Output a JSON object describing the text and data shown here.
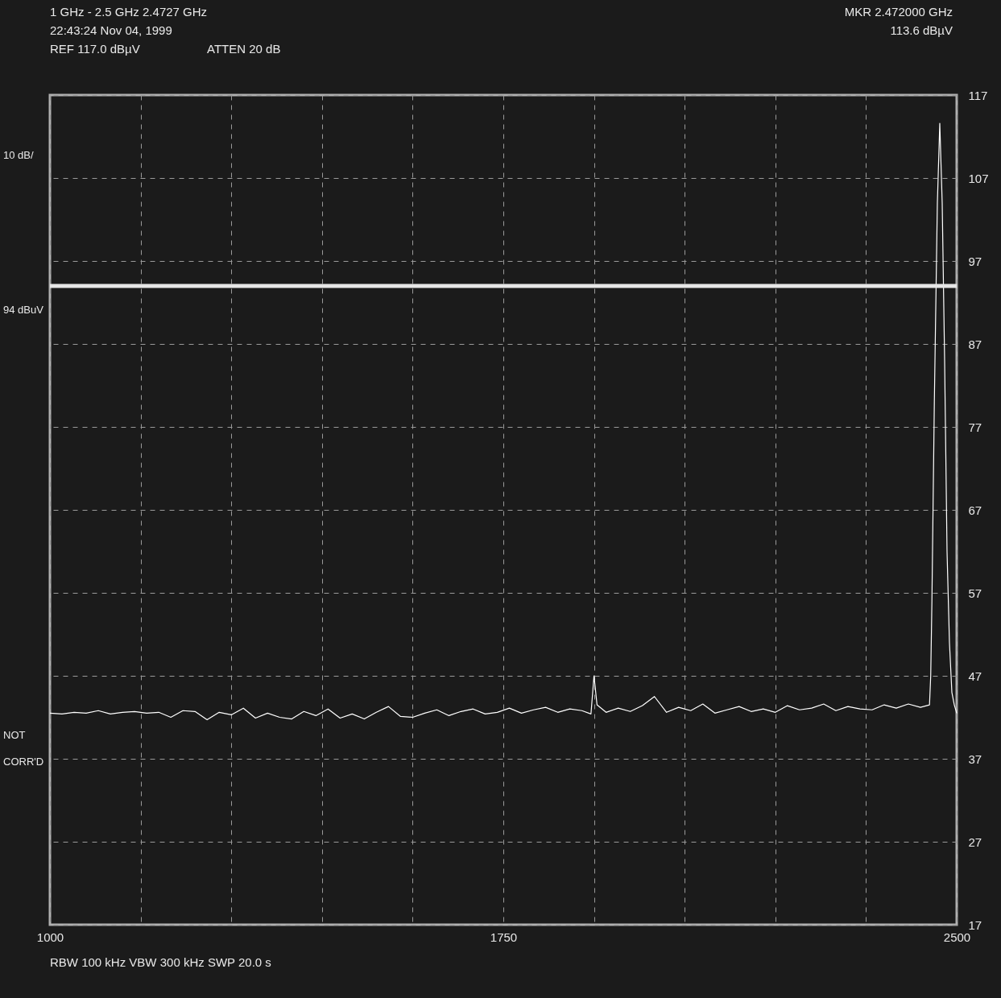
{
  "chart_data": {
    "type": "line",
    "xlim": [
      1000,
      2500
    ],
    "ylim": [
      17,
      117
    ],
    "xticks": [
      1000,
      {
        "value": 1150,
        "label": null
      },
      {
        "value": 1300,
        "label": null
      },
      {
        "value": 1450,
        "label": null
      },
      {
        "value": 1600,
        "label": null
      },
      1750,
      {
        "value": 1900,
        "label": null
      },
      {
        "value": 2050,
        "label": null
      },
      {
        "value": 2200,
        "label": null
      },
      {
        "value": 2350,
        "label": null
      },
      2500
    ],
    "yticks": [
      17,
      27,
      37,
      47,
      57,
      67,
      77,
      87,
      97,
      107,
      117
    ],
    "grid": true,
    "line_style": "solid",
    "marker": "none",
    "series": [
      {
        "color": "#ffffff",
        "x": [
          1000,
          1020,
          1040,
          1060,
          1080,
          1100,
          1120,
          1140,
          1160,
          1180,
          1200,
          1220,
          1240,
          1260,
          1280,
          1300,
          1320,
          1340,
          1360,
          1380,
          1400,
          1420,
          1440,
          1460,
          1480,
          1500,
          1520,
          1540,
          1560,
          1580,
          1600,
          1620,
          1640,
          1660,
          1680,
          1700,
          1720,
          1740,
          1760,
          1780,
          1800,
          1820,
          1840,
          1860,
          1880,
          1895,
          1900,
          1905,
          1920,
          1940,
          1960,
          1980,
          2000,
          2020,
          2040,
          2060,
          2080,
          2100,
          2120,
          2140,
          2160,
          2180,
          2200,
          2220,
          2240,
          2260,
          2280,
          2300,
          2320,
          2340,
          2360,
          2380,
          2400,
          2420,
          2440,
          2455,
          2457,
          2459,
          2463,
          2468,
          2472,
          2476,
          2480,
          2484,
          2488,
          2492,
          2496,
          2500
        ],
        "values": [
          42.5,
          42.4,
          42.6,
          42.5,
          42.8,
          42.4,
          42.6,
          42.7,
          42.5,
          42.6,
          42.0,
          42.8,
          42.7,
          41.7,
          42.6,
          42.3,
          43.1,
          41.9,
          42.5,
          42.0,
          41.8,
          42.7,
          42.2,
          43.0,
          41.9,
          42.4,
          41.8,
          42.6,
          43.3,
          42.1,
          42.0,
          42.5,
          42.9,
          42.2,
          42.7,
          43.0,
          42.4,
          42.6,
          43.1,
          42.5,
          42.9,
          43.2,
          42.6,
          43.0,
          42.8,
          42.4,
          47.0,
          43.5,
          42.6,
          43.1,
          42.7,
          43.4,
          44.5,
          42.6,
          43.2,
          42.8,
          43.6,
          42.5,
          42.9,
          43.3,
          42.7,
          43.0,
          42.6,
          43.4,
          42.9,
          43.1,
          43.6,
          42.8,
          43.3,
          43.0,
          42.9,
          43.5,
          43.1,
          43.6,
          43.2,
          43.5,
          47.0,
          56.0,
          80.0,
          104.0,
          113.6,
          104.0,
          85.0,
          62.0,
          51.0,
          45.0,
          43.5,
          42.5
        ]
      }
    ],
    "ref_lines": [
      {
        "axis": "y",
        "value": 94,
        "label": "94 dBuV",
        "color": "#e6e6e6"
      }
    ],
    "annotations": [
      "1 GHz - 2.5 GHz  2.4727 GHz",
      "22:43:24 Nov 04, 1999",
      "REF 117.0 dBµV",
      "ATTEN 20 dB",
      "MKR  2.472000 GHz",
      "113.6 dBµV",
      "10 dB/",
      "NOT CORR'D",
      "RBW 100 kHz  VBW 300 kHz  SWP 20.0 s"
    ]
  }
}
